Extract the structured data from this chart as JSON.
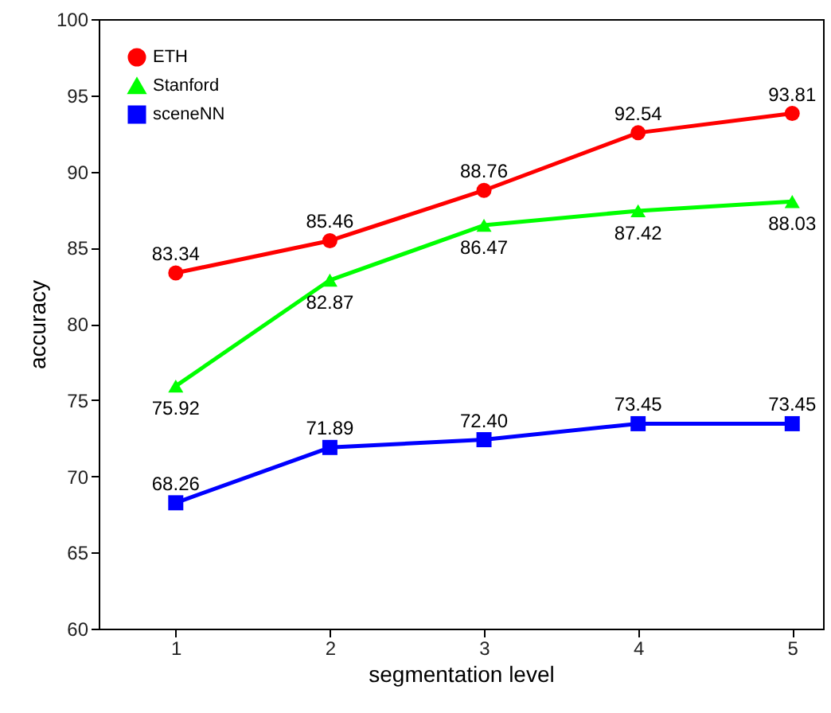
{
  "chart_data": {
    "type": "line",
    "xlabel": "segmentation level",
    "ylabel": "accuracy",
    "x": [
      1,
      2,
      3,
      4,
      5
    ],
    "xlim": [
      0.5,
      5.2
    ],
    "xticks": [
      1,
      2,
      3,
      4,
      5
    ],
    "ylim": [
      60,
      100
    ],
    "yticks": [
      60,
      65,
      70,
      75,
      80,
      85,
      90,
      95,
      100
    ],
    "legend": "top left",
    "grid": false,
    "line_style": "solid",
    "series": [
      {
        "name": "ETH",
        "color": "#ff0000",
        "marker": "circle",
        "values": [
          83.34,
          85.46,
          88.76,
          92.54,
          93.81
        ],
        "value_labels": [
          "83.34",
          "85.46",
          "88.76",
          "92.54",
          "93.81"
        ]
      },
      {
        "name": "Stanford",
        "color": "#00ff00",
        "marker": "triangle",
        "values": [
          75.92,
          82.87,
          86.47,
          87.42,
          88.03
        ],
        "value_labels": [
          "75.92",
          "82.87",
          "86.47",
          "87.42",
          "88.03"
        ]
      },
      {
        "name": "sceneNN",
        "color": "#0000ff",
        "marker": "square",
        "values": [
          68.26,
          71.89,
          72.4,
          73.45,
          73.45
        ],
        "value_labels": [
          "68.26",
          "71.89",
          "72.40",
          "73.45",
          "73.45"
        ]
      }
    ]
  }
}
